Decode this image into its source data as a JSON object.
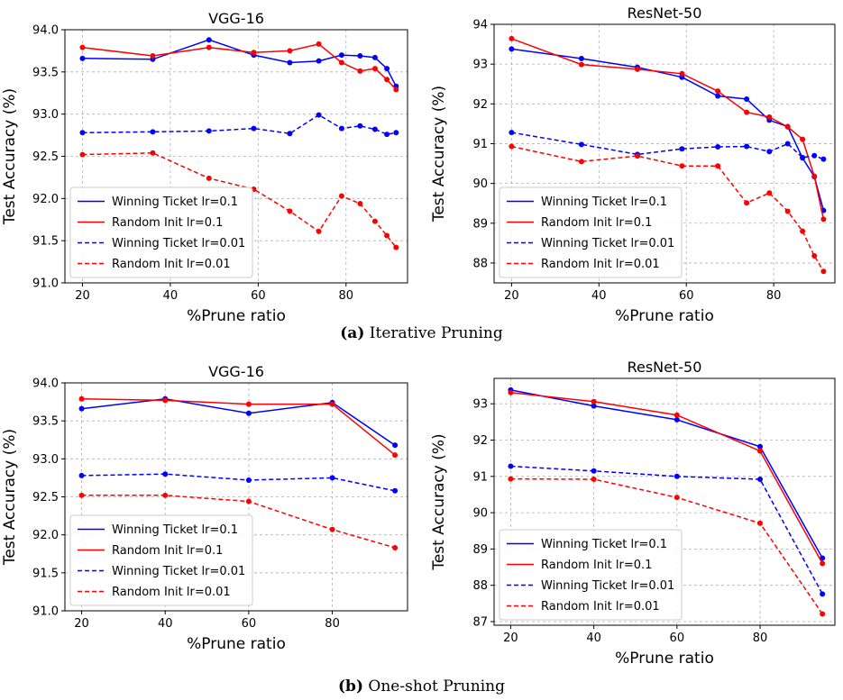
{
  "figure": {
    "caption_a": {
      "tag": "(a)",
      "text": "Iterative Pruning"
    },
    "caption_b": {
      "tag": "(b)",
      "text": "One-shot Pruning"
    }
  },
  "colors": {
    "winning": "#0000ff",
    "random": "#ff0000",
    "grid": "#b0b0b0"
  },
  "chart_data": [
    {
      "type": "line",
      "title": "VGG-16",
      "xlabel": "%Prune ratio",
      "ylabel": "Test Accuracy (%)",
      "xlim": [
        16,
        94
      ],
      "ylim": [
        91.0,
        94.0
      ],
      "xticks": [
        20,
        40,
        60,
        80
      ],
      "yticks": [
        "91.0",
        "91.5",
        "92.0",
        "92.5",
        "93.0",
        "93.5",
        "94.0"
      ],
      "grid": true,
      "legend": "lower-left",
      "series": [
        {
          "name": "Winning Ticket lr=0.1",
          "color": "blue",
          "dash": "solid",
          "x": [
            20,
            36,
            48.8,
            59,
            67.2,
            73.8,
            79,
            83.2,
            86.6,
            89.3,
            91.4
          ],
          "y": [
            93.66,
            93.65,
            93.88,
            93.7,
            93.61,
            93.63,
            93.7,
            93.69,
            93.67,
            93.54,
            93.33
          ]
        },
        {
          "name": "Random Init lr=0.1",
          "color": "red",
          "dash": "solid",
          "x": [
            20,
            36,
            48.8,
            59,
            67.2,
            73.8,
            79,
            83.2,
            86.6,
            89.3,
            91.4
          ],
          "y": [
            93.79,
            93.69,
            93.79,
            93.73,
            93.75,
            93.83,
            93.61,
            93.51,
            93.54,
            93.41,
            93.29
          ]
        },
        {
          "name": "Winning Ticket lr=0.01",
          "color": "blue",
          "dash": "dashed",
          "x": [
            20,
            36,
            48.8,
            59,
            67.2,
            73.8,
            79,
            83.2,
            86.6,
            89.3,
            91.4
          ],
          "y": [
            92.78,
            92.79,
            92.8,
            92.83,
            92.77,
            92.99,
            92.83,
            92.86,
            92.82,
            92.76,
            92.78
          ]
        },
        {
          "name": "Random Init lr=0.01",
          "color": "red",
          "dash": "dashed",
          "x": [
            20,
            36,
            48.8,
            59,
            67.2,
            73.8,
            79,
            83.2,
            86.6,
            89.3,
            91.4
          ],
          "y": [
            92.52,
            92.54,
            92.24,
            92.11,
            91.85,
            91.61,
            92.03,
            91.94,
            91.73,
            91.56,
            91.42
          ]
        }
      ]
    },
    {
      "type": "line",
      "title": "ResNet-50",
      "xlabel": "%Prune ratio",
      "ylabel": "Test Accuracy (%)",
      "xlim": [
        16,
        94
      ],
      "ylim": [
        87.5,
        94.0
      ],
      "xticks": [
        20,
        40,
        60,
        80
      ],
      "yticks": [
        "88",
        "89",
        "90",
        "91",
        "92",
        "93",
        "94"
      ],
      "grid": true,
      "legend": "lower-left",
      "series": [
        {
          "name": "Winning Ticket lr=0.1",
          "color": "blue",
          "dash": "solid",
          "x": [
            20,
            36,
            48.8,
            59,
            67.2,
            73.8,
            79,
            83.2,
            86.6,
            89.3,
            91.4
          ],
          "y": [
            93.38,
            93.14,
            92.92,
            92.67,
            92.2,
            92.12,
            91.59,
            91.43,
            90.64,
            90.17,
            89.32
          ]
        },
        {
          "name": "Random Init lr=0.1",
          "color": "red",
          "dash": "solid",
          "x": [
            20,
            36,
            48.8,
            59,
            67.2,
            73.8,
            79,
            83.2,
            86.6,
            89.3,
            91.4
          ],
          "y": [
            93.64,
            92.99,
            92.87,
            92.76,
            92.32,
            91.79,
            91.67,
            91.42,
            91.11,
            90.18,
            89.1
          ]
        },
        {
          "name": "Winning Ticket lr=0.01",
          "color": "blue",
          "dash": "dashed",
          "x": [
            20,
            36,
            48.8,
            59,
            67.2,
            73.8,
            79,
            83.2,
            86.6,
            89.3,
            91.4
          ],
          "y": [
            91.28,
            90.98,
            90.73,
            90.87,
            90.92,
            90.93,
            90.8,
            91.0,
            90.65,
            90.7,
            90.61
          ]
        },
        {
          "name": "Random Init lr=0.01",
          "color": "red",
          "dash": "dashed",
          "x": [
            20,
            36,
            48.8,
            59,
            67.2,
            73.8,
            79,
            83.2,
            86.6,
            89.3,
            91.4
          ],
          "y": [
            90.93,
            90.55,
            90.69,
            90.44,
            90.44,
            89.51,
            89.76,
            89.3,
            88.8,
            88.18,
            87.79
          ]
        }
      ]
    },
    {
      "type": "line",
      "title": "VGG-16",
      "xlabel": "%Prune ratio",
      "ylabel": "Test Accuracy (%)",
      "xlim": [
        16,
        98
      ],
      "ylim": [
        91.0,
        94.0
      ],
      "xticks": [
        20,
        40,
        60,
        80
      ],
      "yticks": [
        "91.0",
        "91.5",
        "92.0",
        "92.5",
        "93.0",
        "93.5",
        "94.0"
      ],
      "grid": true,
      "legend": "lower-left",
      "series": [
        {
          "name": "Winning Ticket lr=0.1",
          "color": "blue",
          "dash": "solid",
          "x": [
            20,
            40,
            60,
            80,
            95
          ],
          "y": [
            93.66,
            93.79,
            93.6,
            93.74,
            93.18
          ]
        },
        {
          "name": "Random Init lr=0.1",
          "color": "red",
          "dash": "solid",
          "x": [
            20,
            40,
            60,
            80,
            95
          ],
          "y": [
            93.79,
            93.77,
            93.72,
            93.72,
            93.05
          ]
        },
        {
          "name": "Winning Ticket lr=0.01",
          "color": "blue",
          "dash": "dashed",
          "x": [
            20,
            40,
            60,
            80,
            95
          ],
          "y": [
            92.78,
            92.8,
            92.72,
            92.75,
            92.58
          ]
        },
        {
          "name": "Random Init lr=0.01",
          "color": "red",
          "dash": "dashed",
          "x": [
            20,
            40,
            60,
            80,
            95
          ],
          "y": [
            92.52,
            92.52,
            92.44,
            92.07,
            91.83
          ]
        }
      ]
    },
    {
      "type": "line",
      "title": "ResNet-50",
      "xlabel": "%Prune ratio",
      "ylabel": "Test Accuracy (%)",
      "xlim": [
        16,
        98
      ],
      "ylim": [
        86.9,
        93.7
      ],
      "xticks": [
        20,
        40,
        60,
        80
      ],
      "yticks": [
        "87",
        "88",
        "89",
        "90",
        "91",
        "92",
        "93"
      ],
      "grid": true,
      "legend": "lower-left",
      "series": [
        {
          "name": "Winning Ticket lr=0.1",
          "color": "blue",
          "dash": "solid",
          "x": [
            20,
            40,
            60,
            80,
            95
          ],
          "y": [
            93.38,
            92.94,
            92.56,
            91.82,
            88.75
          ]
        },
        {
          "name": "Random Init lr=0.1",
          "color": "red",
          "dash": "solid",
          "x": [
            20,
            40,
            60,
            80,
            95
          ],
          "y": [
            93.31,
            93.06,
            92.69,
            91.7,
            88.6
          ]
        },
        {
          "name": "Winning Ticket lr=0.01",
          "color": "blue",
          "dash": "dashed",
          "x": [
            20,
            40,
            60,
            80,
            95
          ],
          "y": [
            91.28,
            91.15,
            91.0,
            90.92,
            87.76
          ]
        },
        {
          "name": "Random Init lr=0.01",
          "color": "red",
          "dash": "dashed",
          "x": [
            20,
            40,
            60,
            80,
            95
          ],
          "y": [
            90.93,
            90.92,
            90.42,
            89.71,
            87.21
          ]
        }
      ]
    }
  ]
}
